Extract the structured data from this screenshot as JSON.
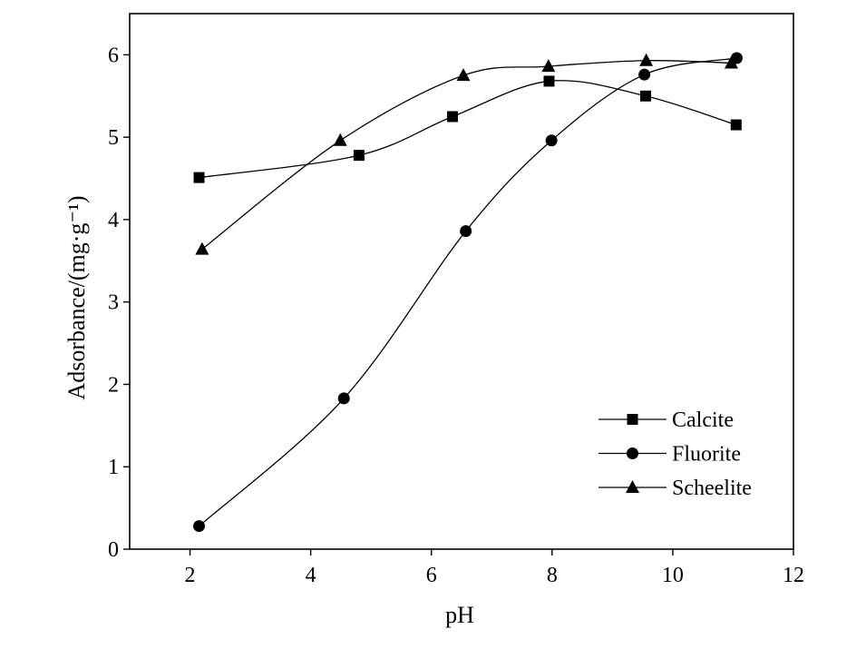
{
  "chart_data": {
    "type": "line",
    "xlabel": "pH",
    "ylabel": "Adsorbance/(mg·g⁻¹)",
    "xlim": [
      1,
      12
    ],
    "ylim": [
      0,
      6.5
    ],
    "xticks": [
      2,
      4,
      6,
      8,
      10,
      12
    ],
    "yticks": [
      0,
      1,
      2,
      3,
      4,
      5,
      6
    ],
    "grid": false,
    "legend_position": "bottom-right",
    "series": [
      {
        "name": "Calcite",
        "marker": "square",
        "color": "#000000",
        "x": [
          2.15,
          4.8,
          6.35,
          7.95,
          9.55,
          11.05
        ],
        "y": [
          4.51,
          4.78,
          5.25,
          5.68,
          5.5,
          5.15
        ]
      },
      {
        "name": "Fluorite",
        "marker": "circle",
        "color": "#000000",
        "x": [
          2.15,
          4.55,
          6.57,
          7.99,
          9.53,
          11.06
        ],
        "y": [
          0.28,
          1.83,
          3.86,
          4.96,
          5.76,
          5.96
        ]
      },
      {
        "name": "Scheelite",
        "marker": "triangle",
        "color": "#000000",
        "x": [
          2.2,
          4.49,
          6.53,
          7.94,
          9.56,
          10.97
        ],
        "y": [
          3.64,
          4.96,
          5.75,
          5.86,
          5.93,
          5.9
        ]
      }
    ]
  }
}
